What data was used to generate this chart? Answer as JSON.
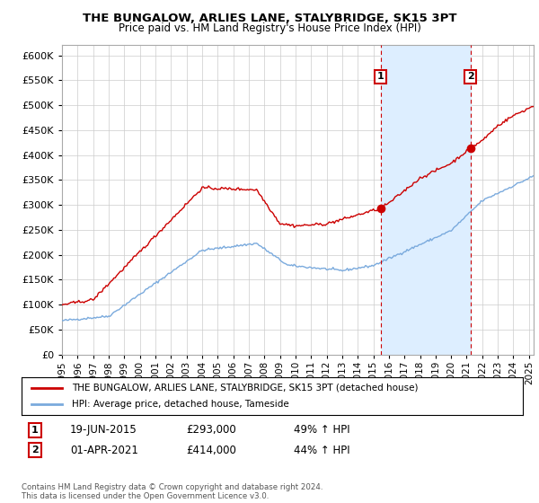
{
  "title1": "THE BUNGALOW, ARLIES LANE, STALYBRIDGE, SK15 3PT",
  "title2": "Price paid vs. HM Land Registry's House Price Index (HPI)",
  "ylim": [
    0,
    620000
  ],
  "yticks": [
    0,
    50000,
    100000,
    150000,
    200000,
    250000,
    300000,
    350000,
    400000,
    450000,
    500000,
    550000,
    600000
  ],
  "xmin": 1995.0,
  "xmax": 2025.3,
  "sale1_x": 2015.47,
  "sale1_y": 293000,
  "sale1_label": "1",
  "sale1_date": "19-JUN-2015",
  "sale1_price": "£293,000",
  "sale1_hpi": "49% ↑ HPI",
  "sale2_x": 2021.25,
  "sale2_y": 414000,
  "sale2_label": "2",
  "sale2_date": "01-APR-2021",
  "sale2_price": "£414,000",
  "sale2_hpi": "44% ↑ HPI",
  "legend_line1": "THE BUNGALOW, ARLIES LANE, STALYBRIDGE, SK15 3PT (detached house)",
  "legend_line2": "HPI: Average price, detached house, Tameside",
  "footer": "Contains HM Land Registry data © Crown copyright and database right 2024.\nThis data is licensed under the Open Government Licence v3.0.",
  "red_color": "#cc0000",
  "blue_color": "#7aaadd",
  "shade_color": "#ddeeff",
  "background_color": "#ffffff",
  "grid_color": "#cccccc"
}
